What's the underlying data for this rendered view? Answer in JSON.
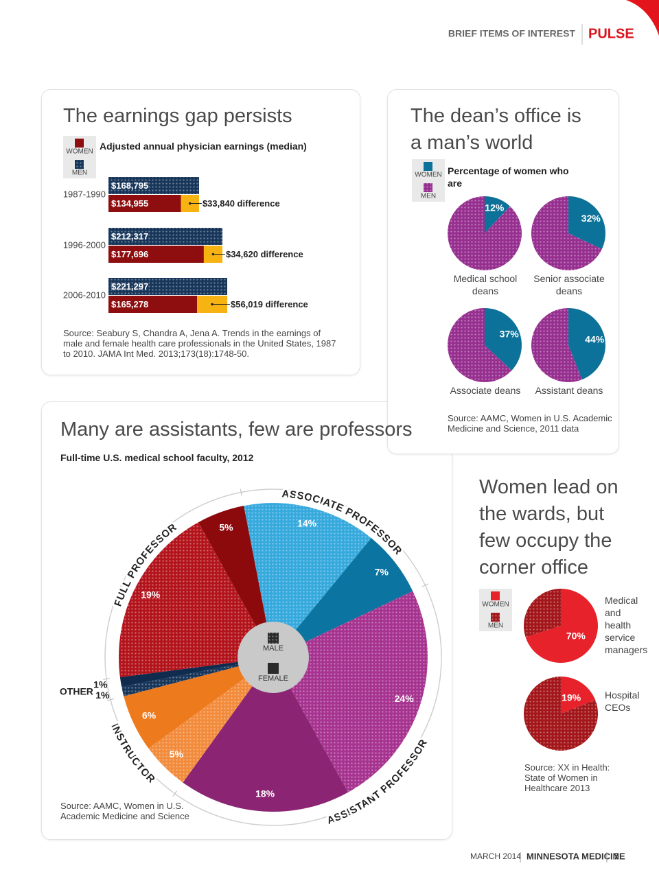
{
  "header": {
    "section": "BRIEF ITEMS OF INTEREST",
    "title": "PULSE"
  },
  "chart_data": [
    {
      "type": "bar",
      "title": "The earnings gap persists",
      "subtitle": "Adjusted annual physician earnings (median)",
      "categories": [
        "1987-1990",
        "1996-2000",
        "2006-2010"
      ],
      "series": [
        {
          "name": "WOMEN",
          "color": "#8e0e10",
          "values": [
            134955,
            177696,
            165278
          ],
          "value_labels": [
            "$134,955",
            "$177,696",
            "$165,278"
          ]
        },
        {
          "name": "MEN",
          "color": "#17365a",
          "pattern": "dots",
          "values": [
            168795,
            212317,
            221297
          ],
          "value_labels": [
            "$168,795",
            "$212,317",
            "$221,297"
          ]
        }
      ],
      "difference": {
        "color": "#f6b312",
        "values": [
          33840,
          34620,
          56019
        ],
        "value_labels": [
          "$33,840 difference",
          "$34,620 difference",
          "$56,019 difference"
        ]
      },
      "source": "Source: Seabury S, Chandra A, Jena A. Trends in the earnings of male and female health care professionals in the United States, 1987 to 2010. JAMA Int Med. 2013;173(18):1748-50."
    },
    {
      "type": "pie",
      "title": "The dean’s office is a man’s world",
      "subtitle": "Percentage of women who are",
      "categories": [
        "Medical school deans",
        "Senior associate deans",
        "Associate deans",
        "Assistant deans"
      ],
      "series": [
        {
          "name": "WOMEN",
          "color": "#0c7299",
          "values": [
            12,
            32,
            37,
            44
          ],
          "value_labels": [
            "12%",
            "32%",
            "37%",
            "44%"
          ]
        },
        {
          "name": "MEN",
          "color": "#962f8f",
          "pattern": "dots",
          "values": [
            88,
            68,
            63,
            56
          ]
        }
      ],
      "source": "Source: AAMC, Women in U.S. Academic Medicine and Science, 2011 data"
    },
    {
      "type": "grouped_pie",
      "title": "Many are assistants, few are professors",
      "subtitle": "Full-time U.S. medical school faculty, 2012",
      "categories": [
        "ASSOCIATE PROFESSOR",
        "ASSISTANT PROFESSOR",
        "INSTRUCTOR",
        "OTHER",
        "FULL PROFESSOR"
      ],
      "series": [
        {
          "name": "MALE",
          "pattern": "dots",
          "legend_color": "#2a2a2a",
          "colors": [
            "#36a9dd",
            "#a6338f",
            "#f28b3b",
            "#17365a",
            "#b3141c"
          ],
          "values": [
            14,
            24,
            5,
            1,
            19
          ],
          "value_labels": [
            "14%",
            "24%",
            "5%",
            "1%",
            "19%"
          ]
        },
        {
          "name": "FEMALE",
          "legend_color": "#2a2a2a",
          "colors": [
            "#0b74a0",
            "#8b2472",
            "#ee7a1e",
            "#0f2b4d",
            "#8c0a0c"
          ],
          "values": [
            7,
            18,
            6,
            1,
            5
          ],
          "value_labels": [
            "7%",
            "18%",
            "6%",
            "1%",
            "5%"
          ]
        }
      ],
      "source": "Source: AAMC, Women in U.S. Academic Medicine and Science"
    },
    {
      "type": "pie",
      "title": "Women lead on the wards, but few occupy the corner office",
      "categories": [
        "Medical and health service managers",
        "Hospital CEOs"
      ],
      "series": [
        {
          "name": "WOMEN",
          "color": "#e8222b",
          "values": [
            70,
            19
          ],
          "value_labels": [
            "70%",
            "19%"
          ]
        },
        {
          "name": "MEN",
          "color": "#a3161a",
          "pattern": "dots",
          "values": [
            30,
            81
          ]
        }
      ],
      "source": "Source: XX in Health: State of Women in Healthcare 2013"
    }
  ],
  "footer": {
    "date": "MARCH 2014",
    "publication": "MINNESOTA MEDICINE",
    "page": "7"
  }
}
